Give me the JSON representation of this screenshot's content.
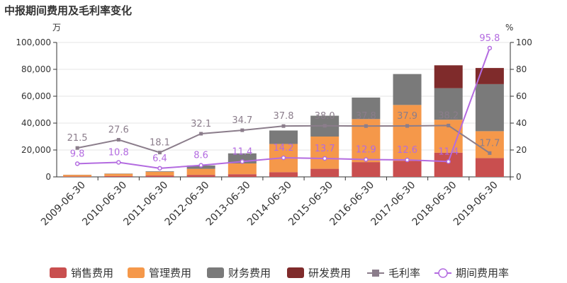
{
  "chart_data": {
    "type": "bar",
    "title": "中报期间费用及毛利率变化",
    "y_left_unit": "万",
    "y_right_unit": "%",
    "y_left_lim": [
      0,
      100000
    ],
    "y_left_ticks": [
      "0",
      "20,000",
      "40,000",
      "60,000",
      "80,000",
      "100,000"
    ],
    "y_right_lim": [
      0,
      100
    ],
    "y_right_ticks": [
      "0",
      "20",
      "40",
      "60",
      "80",
      "100"
    ],
    "categories": [
      "2009-06-30",
      "2010-06-30",
      "2011-06-30",
      "2012-06-30",
      "2013-06-30",
      "2014-06-30",
      "2015-06-30",
      "2016-06-30",
      "2017-06-30",
      "2018-06-30",
      "2019-06-30"
    ],
    "series": [
      {
        "name": "销售费用",
        "kind": "bar",
        "color": "#c94f4f",
        "values": [
          300,
          600,
          1000,
          1500,
          2000,
          3500,
          6000,
          11000,
          12000,
          18000,
          14000
        ]
      },
      {
        "name": "管理费用",
        "kind": "bar",
        "color": "#f5984a",
        "values": [
          1200,
          1700,
          2800,
          4500,
          8000,
          21000,
          24000,
          32000,
          41500,
          24500,
          20000
        ]
      },
      {
        "name": "财务费用",
        "kind": "bar",
        "color": "#7a7a7a",
        "values": [
          100,
          200,
          400,
          2500,
          7500,
          10000,
          15500,
          16000,
          23000,
          23500,
          35000
        ]
      },
      {
        "name": "研发费用",
        "kind": "bar",
        "color": "#7f2b2b",
        "values": [
          0,
          0,
          0,
          0,
          0,
          0,
          0,
          0,
          0,
          17000,
          12000
        ]
      },
      {
        "name": "毛利率",
        "kind": "line",
        "axis": "right",
        "color": "#8b7d8b",
        "values": [
          21.5,
          27.6,
          18.1,
          32.1,
          34.7,
          37.8,
          38.0,
          37.8,
          37.9,
          38.2,
          17.7
        ],
        "labels": [
          "21.5",
          "27.6",
          "18.1",
          "32.1",
          "34.7",
          "37.8",
          "38.0",
          "37.8",
          "37.9",
          "38.2",
          "17.7"
        ]
      },
      {
        "name": "期间费用率",
        "kind": "line",
        "axis": "right",
        "color": "#b36be0",
        "values": [
          9.8,
          10.8,
          6.4,
          8.6,
          11.4,
          14.2,
          13.7,
          12.9,
          12.6,
          11.4,
          95.8
        ],
        "labels": [
          "9.8",
          "10.8",
          "6.4",
          "8.6",
          "11.4",
          "14.2",
          "13.7",
          "12.9",
          "12.6",
          "11.4",
          "95.8"
        ]
      }
    ],
    "legend_position": "bottom"
  }
}
